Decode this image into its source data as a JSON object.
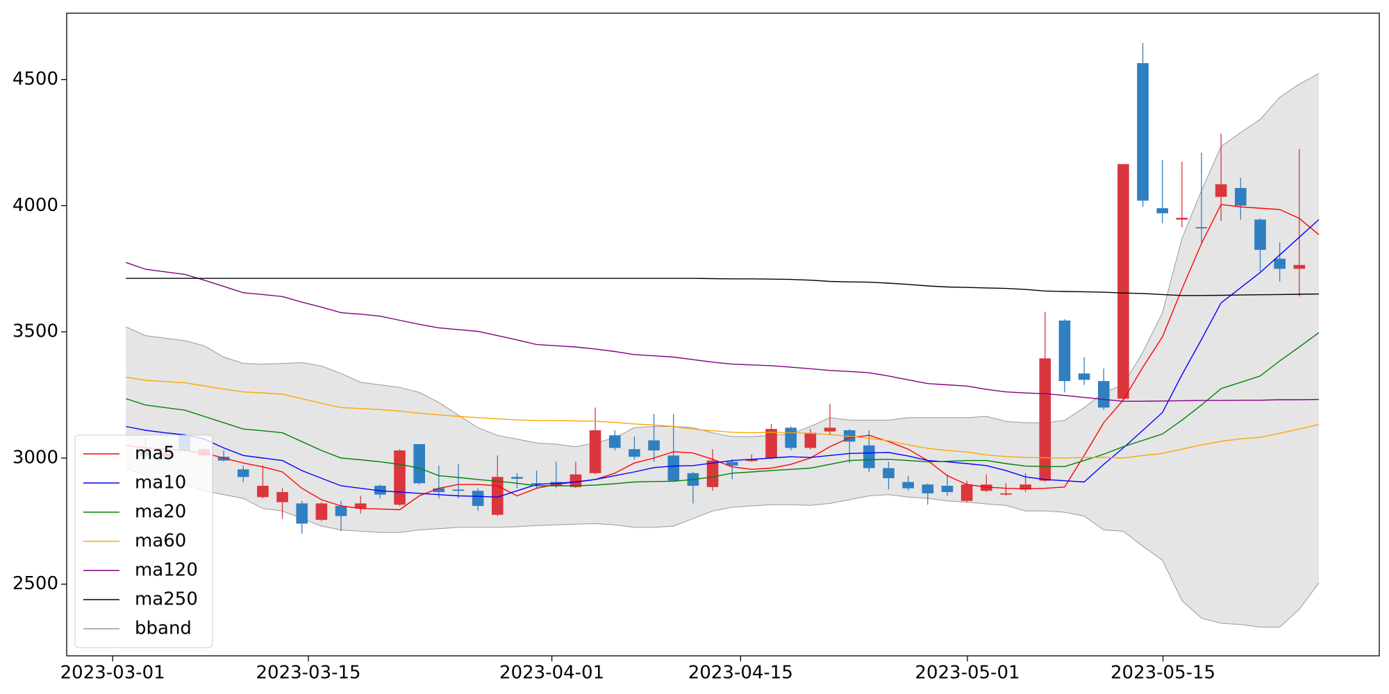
{
  "chart_data": {
    "type": "candlestick",
    "x": [
      0,
      1,
      2,
      3,
      4,
      5,
      6,
      7,
      8,
      9,
      10,
      11,
      12,
      13,
      14,
      15,
      16,
      17,
      18,
      19,
      20,
      21,
      22,
      23,
      24,
      25,
      26,
      27,
      28,
      29,
      30,
      31,
      32,
      33,
      34,
      35,
      36,
      37,
      38,
      39,
      40,
      41,
      42,
      43,
      44,
      45,
      46,
      47,
      48,
      49,
      50,
      51,
      52,
      53,
      54,
      55,
      56,
      57,
      58,
      59,
      60,
      61
    ],
    "xlim": [
      -3.03,
      64.09
    ],
    "xticks": [
      {
        "value": -0.68,
        "label": "2023-03-01"
      },
      {
        "value": 9.33,
        "label": "2023-03-15"
      },
      {
        "value": 21.78,
        "label": "2023-04-01"
      },
      {
        "value": 31.43,
        "label": "2023-04-15"
      },
      {
        "value": 43.03,
        "label": "2023-05-01"
      },
      {
        "value": 53.03,
        "label": "2023-05-15"
      }
    ],
    "ylim": [
      2216,
      4763
    ],
    "yticks": [
      2500,
      3000,
      3500,
      4000,
      4500
    ],
    "up_color": "#d9363e",
    "down_color": "#2f7fc1",
    "open": [
      null,
      3030,
      3005,
      3090,
      3010,
      3005,
      2955,
      2845,
      2825,
      2820,
      2755,
      2810,
      2800,
      2890,
      2815,
      3055,
      2880,
      2875,
      2870,
      2775,
      2925,
      2900,
      2905,
      2885,
      2940,
      3090,
      3035,
      3070,
      3010,
      2940,
      2885,
      2985,
      2988,
      3000,
      3120,
      3040,
      3105,
      3110,
      3050,
      2960,
      2905,
      2895,
      2890,
      2830,
      2870,
      2855,
      2875,
      2910,
      3545,
      3335,
      3305,
      3235,
      4565,
      3990,
      3945,
      3915,
      4035,
      4070,
      3945,
      3790,
      3750,
      null
    ],
    "high": [
      null,
      3080,
      3030,
      3095,
      3040,
      3030,
      2970,
      2970,
      2880,
      2830,
      2825,
      2830,
      2850,
      2895,
      3035,
      3055,
      2970,
      2975,
      2880,
      3010,
      2940,
      2950,
      2985,
      2985,
      3200,
      3110,
      3085,
      3175,
      3175,
      2945,
      3035,
      2995,
      3015,
      3135,
      3125,
      3115,
      3215,
      3115,
      3110,
      2985,
      2930,
      2900,
      2935,
      2910,
      2935,
      2900,
      2940,
      3580,
      3550,
      3400,
      3355,
      4165,
      4645,
      4180,
      4175,
      4210,
      4285,
      4110,
      3950,
      3855,
      4225,
      null
    ],
    "low": [
      null,
      3000,
      2995,
      3025,
      3005,
      2985,
      2905,
      2840,
      2760,
      2700,
      2750,
      2710,
      2780,
      2840,
      2810,
      2895,
      2840,
      2840,
      2790,
      2770,
      2880,
      2880,
      2880,
      2880,
      2935,
      3030,
      2995,
      2985,
      2905,
      2820,
      2870,
      2915,
      2985,
      2995,
      3030,
      3035,
      3090,
      2980,
      2945,
      2875,
      2870,
      2815,
      2850,
      2825,
      2865,
      2850,
      2865,
      2905,
      3260,
      3290,
      3190,
      3230,
      3995,
      3930,
      3915,
      3855,
      3940,
      3945,
      3740,
      3700,
      3640,
      null
    ],
    "close": [
      null,
      3010,
      3020,
      3030,
      3035,
      2990,
      2925,
      2890,
      2865,
      2740,
      2820,
      2770,
      2820,
      2855,
      3030,
      2900,
      2865,
      2870,
      2810,
      2925,
      2918,
      2895,
      2890,
      2935,
      3110,
      3040,
      3005,
      3030,
      2910,
      2890,
      2990,
      2970,
      2995,
      3115,
      3040,
      3100,
      3120,
      3065,
      2960,
      2920,
      2880,
      2860,
      2865,
      2895,
      2895,
      2860,
      2895,
      3395,
      3305,
      3310,
      3200,
      4165,
      4020,
      3970,
      3952,
      3910,
      4085,
      4000,
      3825,
      3750,
      3765,
      null
    ],
    "series": [
      {
        "name": "ma5",
        "color": "#ff0000",
        "values": [
          3050,
          3040,
          3035,
          3030,
          3020,
          3000,
          2980,
          2965,
          2945,
          2880,
          2835,
          2810,
          2800,
          2798,
          2795,
          2850,
          2880,
          2895,
          2895,
          2890,
          2850,
          2880,
          2895,
          2905,
          2915,
          2940,
          2980,
          3000,
          3025,
          3020,
          2995,
          2965,
          2955,
          2960,
          2975,
          3000,
          3045,
          3080,
          3090,
          3065,
          3035,
          2990,
          2930,
          2895,
          2885,
          2880,
          2878,
          2880,
          2885,
          3010,
          3140,
          3230,
          3360,
          3480,
          3670,
          3850,
          4005,
          3995,
          3990,
          3985,
          3950,
          3885
        ]
      },
      {
        "name": "ma10",
        "color": "#0000ff",
        "values": [
          3125,
          3110,
          3100,
          3092,
          3075,
          3040,
          3010,
          3000,
          2990,
          2950,
          2920,
          2890,
          2880,
          2870,
          2865,
          2860,
          2855,
          2850,
          2848,
          2845,
          2870,
          2895,
          2900,
          2905,
          2915,
          2930,
          2945,
          2962,
          2968,
          2970,
          2980,
          2990,
          2995,
          3000,
          3005,
          3002,
          3010,
          3018,
          3020,
          3022,
          3008,
          2990,
          2985,
          2978,
          2970,
          2950,
          2925,
          2915,
          2910,
          2905,
          2975,
          3040,
          3110,
          3180,
          3330,
          3470,
          3615,
          3675,
          3735,
          3805,
          3875,
          3945
        ]
      },
      {
        "name": "ma20",
        "color": "#008000",
        "values": [
          3235,
          3210,
          3200,
          3190,
          3165,
          3140,
          3115,
          3108,
          3100,
          3065,
          3030,
          3000,
          2993,
          2985,
          2975,
          2960,
          2930,
          2923,
          2915,
          2908,
          2900,
          2890,
          2890,
          2890,
          2893,
          2898,
          2905,
          2907,
          2908,
          2915,
          2925,
          2940,
          2945,
          2950,
          2955,
          2960,
          2975,
          2990,
          2993,
          2995,
          2990,
          2985,
          2987,
          2990,
          2990,
          2978,
          2968,
          2966,
          2966,
          2990,
          3015,
          3045,
          3070,
          3095,
          3150,
          3210,
          3275,
          3300,
          3325,
          3385,
          3440,
          3497
        ]
      },
      {
        "name": "ma60",
        "color": "#ffa500",
        "values": [
          3320,
          3308,
          3303,
          3298,
          3286,
          3273,
          3262,
          3258,
          3253,
          3235,
          3217,
          3200,
          3196,
          3192,
          3186,
          3178,
          3171,
          3165,
          3160,
          3155,
          3151,
          3149,
          3148,
          3147,
          3146,
          3141,
          3135,
          3131,
          3125,
          3115,
          3108,
          3102,
          3100,
          3102,
          3100,
          3098,
          3093,
          3086,
          3078,
          3068,
          3052,
          3038,
          3030,
          3024,
          3012,
          3006,
          3002,
          3001,
          3000,
          3002,
          3003,
          3000,
          3010,
          3018,
          3035,
          3052,
          3066,
          3076,
          3082,
          3098,
          3115,
          3133
        ]
      },
      {
        "name": "ma120",
        "color": "#800080",
        "values": [
          3775,
          3748,
          3738,
          3728,
          3705,
          3680,
          3655,
          3648,
          3640,
          3618,
          3598,
          3576,
          3570,
          3562,
          3546,
          3530,
          3516,
          3509,
          3502,
          3485,
          3468,
          3450,
          3445,
          3440,
          3432,
          3422,
          3410,
          3405,
          3400,
          3390,
          3380,
          3372,
          3369,
          3366,
          3360,
          3354,
          3347,
          3343,
          3338,
          3325,
          3310,
          3295,
          3290,
          3285,
          3272,
          3262,
          3258,
          3255,
          3248,
          3240,
          3232,
          3225,
          3225,
          3226,
          3227,
          3228,
          3228,
          3229,
          3229,
          3231,
          3231,
          3232
        ]
      },
      {
        "name": "ma250",
        "color": "#000000",
        "values": [
          3712,
          3712,
          3712,
          3712,
          3712,
          3712,
          3712,
          3712,
          3712,
          3712,
          3712,
          3712,
          3712,
          3712,
          3712,
          3712,
          3712,
          3712,
          3712,
          3712,
          3712,
          3712,
          3712,
          3712,
          3712,
          3712,
          3712,
          3712,
          3712,
          3712,
          3711,
          3710,
          3710,
          3709,
          3708,
          3705,
          3700,
          3698,
          3697,
          3693,
          3688,
          3682,
          3678,
          3676,
          3674,
          3672,
          3668,
          3662,
          3660,
          3659,
          3657,
          3654,
          3652,
          3648,
          3644,
          3644,
          3645,
          3646,
          3647,
          3648,
          3649,
          3650
        ]
      }
    ],
    "band": {
      "name": "bband",
      "color": "#999999",
      "fill": "#e5e5e5",
      "upper": [
        3520,
        3485,
        3475,
        3465,
        3445,
        3400,
        3375,
        3372,
        3375,
        3378,
        3365,
        3335,
        3300,
        3290,
        3280,
        3260,
        3220,
        3170,
        3120,
        3090,
        3075,
        3060,
        3055,
        3045,
        3060,
        3080,
        3120,
        3125,
        3125,
        3120,
        3100,
        3085,
        3085,
        3090,
        3095,
        3125,
        3160,
        3150,
        3150,
        3150,
        3160,
        3160,
        3160,
        3160,
        3165,
        3145,
        3140,
        3140,
        3149,
        3200,
        3260,
        3290,
        3420,
        3575,
        3870,
        4060,
        4235,
        4290,
        4342,
        4430,
        4482,
        4524
      ],
      "lower": [
        2960,
        2930,
        2910,
        2895,
        2870,
        2855,
        2840,
        2800,
        2790,
        2760,
        2730,
        2715,
        2710,
        2705,
        2705,
        2715,
        2720,
        2725,
        2725,
        2725,
        2728,
        2732,
        2735,
        2738,
        2740,
        2735,
        2725,
        2725,
        2730,
        2760,
        2790,
        2805,
        2810,
        2815,
        2815,
        2812,
        2820,
        2835,
        2850,
        2855,
        2845,
        2840,
        2830,
        2825,
        2818,
        2812,
        2790,
        2790,
        2785,
        2770,
        2715,
        2710,
        2650,
        2595,
        2435,
        2365,
        2345,
        2340,
        2330,
        2330,
        2400,
        2505
      ]
    },
    "legend": "lower left"
  }
}
